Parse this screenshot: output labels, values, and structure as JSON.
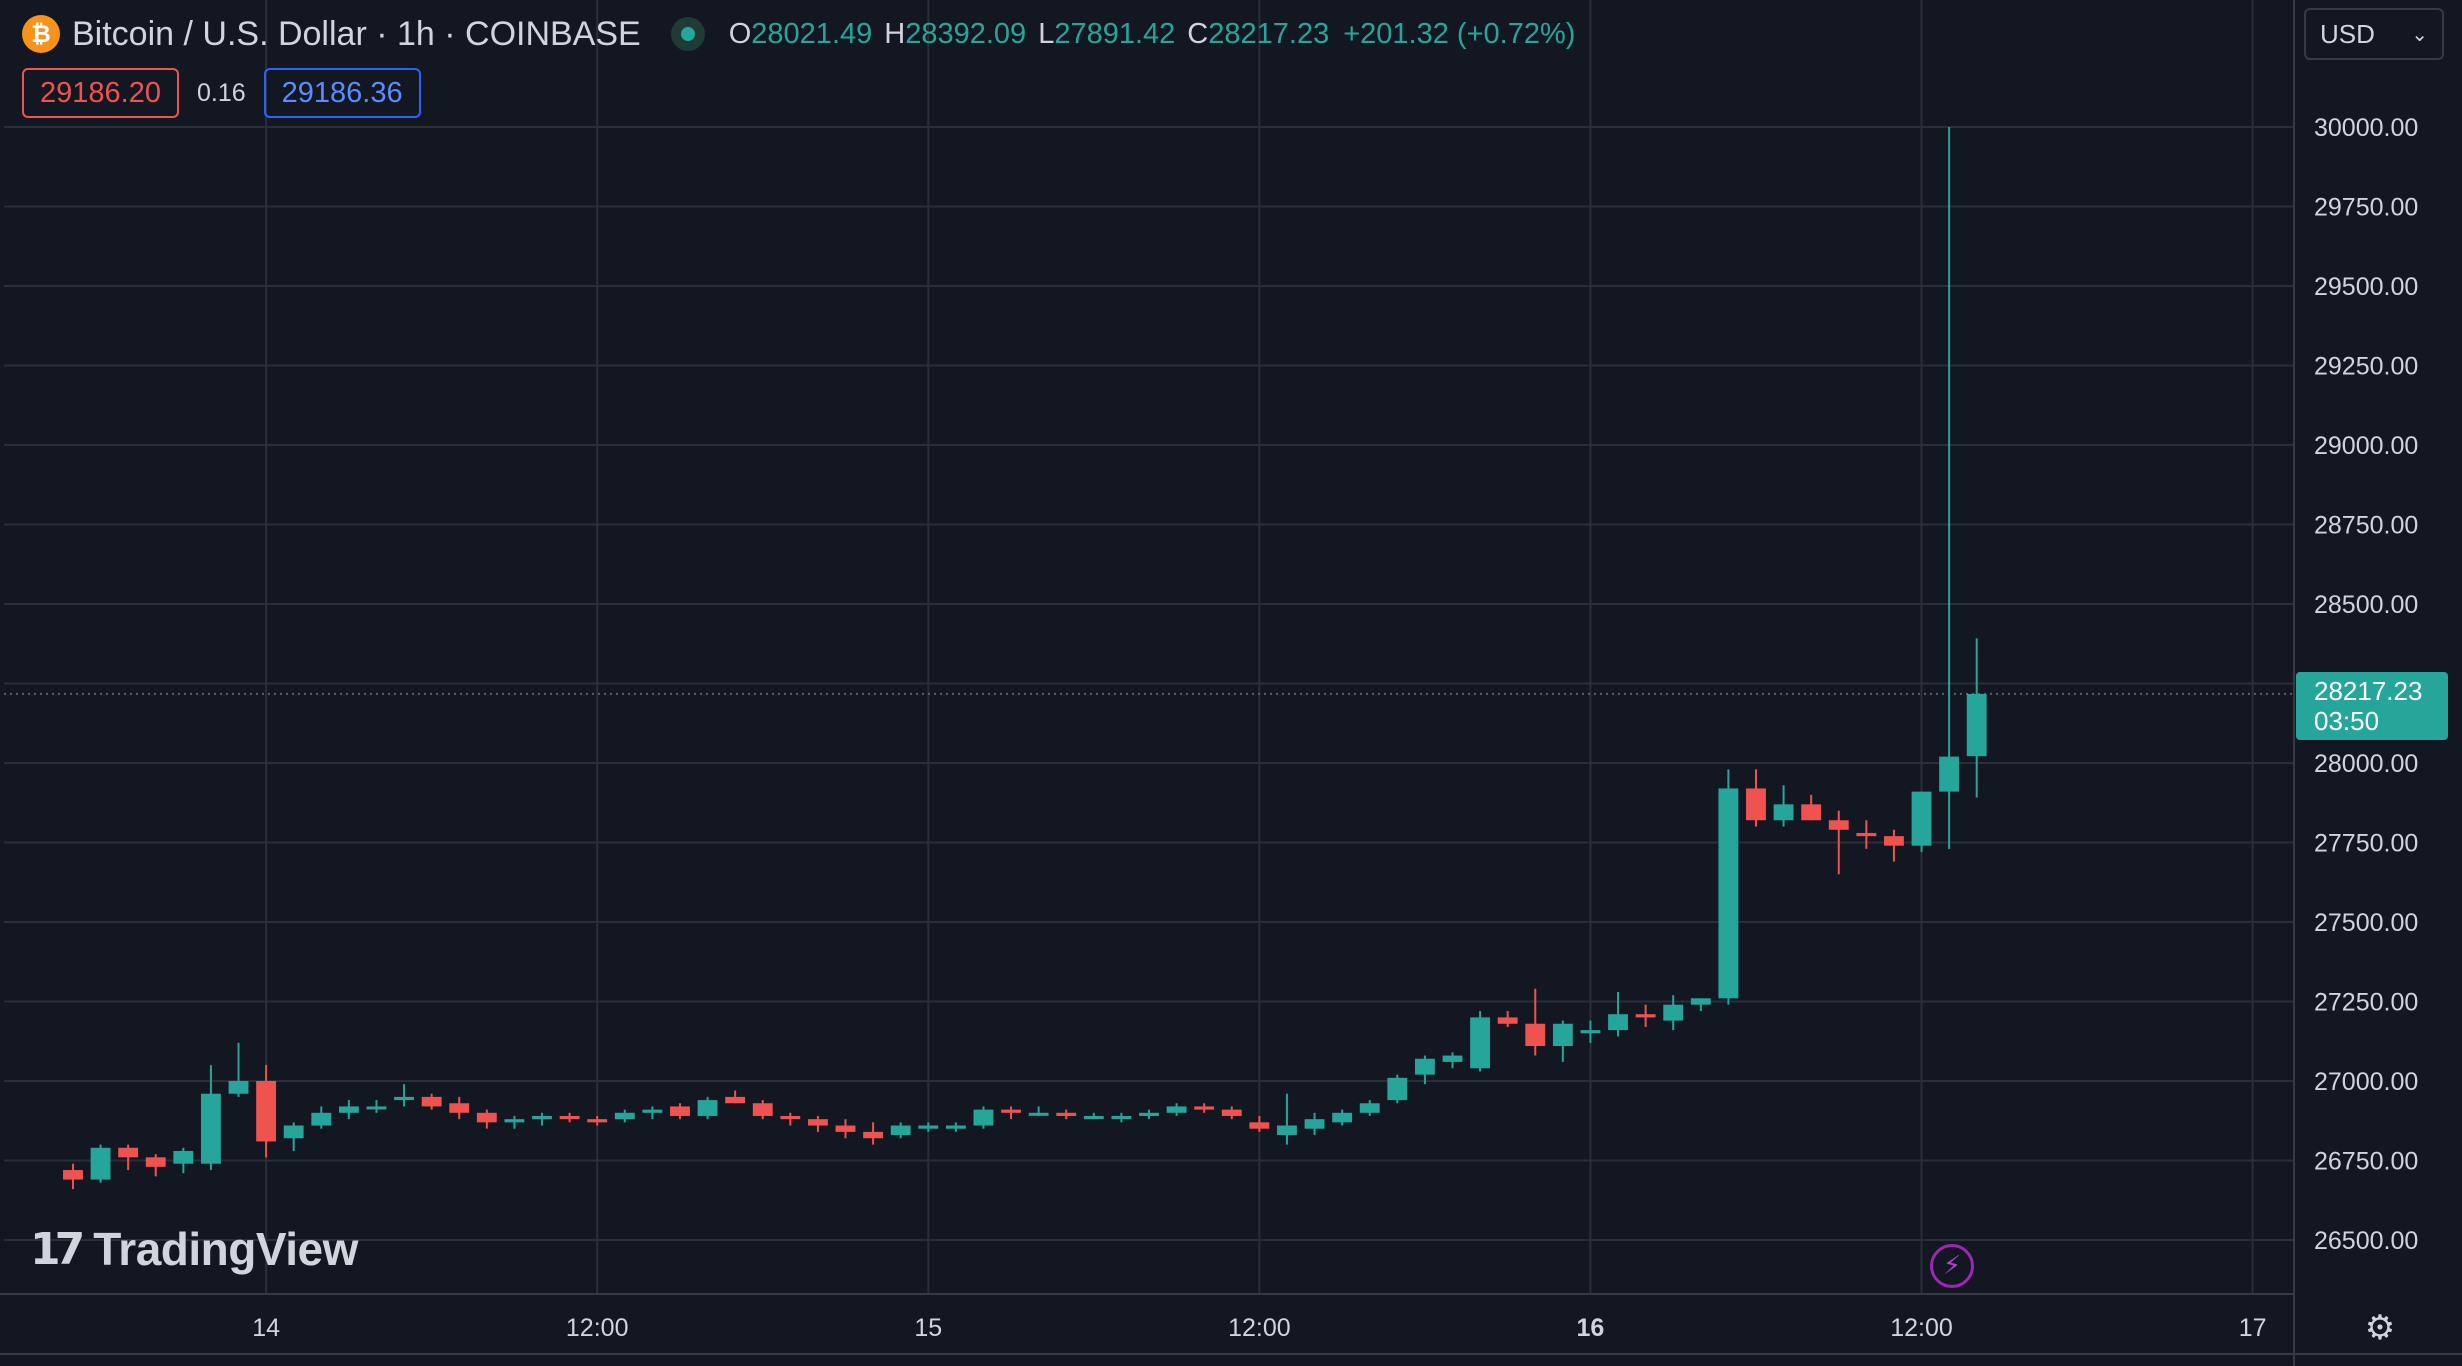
{
  "header": {
    "symbol_icon": "bitcoin-icon",
    "title": "Bitcoin / U.S. Dollar · 1h · COINBASE",
    "ohlc": {
      "o_label": "O",
      "o_value": "28021.49",
      "h_label": "H",
      "h_value": "28392.09",
      "l_label": "L",
      "l_value": "27891.42",
      "c_label": "C",
      "c_value": "28217.23",
      "change": "+201.32 (+0.72%)"
    }
  },
  "quote": {
    "bid": "29186.20",
    "spread": "0.16",
    "ask": "29186.36"
  },
  "currency_select": {
    "value": "USD",
    "icon": "chevron-down-icon"
  },
  "last_price_tag": {
    "price": "28217.23",
    "countdown": "03:50"
  },
  "branding": {
    "logo_text": "TradingView",
    "logo_mark": "17"
  },
  "icons": {
    "bolt": "lightning-icon",
    "settings": "gear-icon"
  },
  "colors": {
    "background": "#131722",
    "grid": "#2a2e39",
    "up": "#26a69a",
    "down": "#ef5350",
    "text": "#d1d4dc",
    "bid": "#ef5350",
    "ask": "#2962ff"
  },
  "chart_data": {
    "type": "candlestick",
    "interval": "1h",
    "ylim": [
      26300,
      30200
    ],
    "y_ticks": [
      "30000.00",
      "29750.00",
      "29500.00",
      "29250.00",
      "29000.00",
      "28750.00",
      "28500.00",
      "28250.00",
      "28000.00",
      "27750.00",
      "27500.00",
      "27250.00",
      "27000.00",
      "26750.00",
      "26500.00"
    ],
    "x_ticks": [
      {
        "label": "14",
        "hour": 7,
        "bold": false
      },
      {
        "label": "12:00",
        "hour": 19,
        "bold": false
      },
      {
        "label": "15",
        "hour": 31,
        "bold": false
      },
      {
        "label": "12:00",
        "hour": 43,
        "bold": false
      },
      {
        "label": "16",
        "hour": 55,
        "bold": true
      },
      {
        "label": "12:00",
        "hour": 67,
        "bold": false
      },
      {
        "label": "17",
        "hour": 79,
        "bold": false
      }
    ],
    "x_range_hours": [
      -2.5,
      80.5
    ],
    "last_price": 28217.23,
    "ohlc": [
      [
        26720,
        26740,
        26660,
        26690
      ],
      [
        26690,
        26800,
        26680,
        26790
      ],
      [
        26790,
        26800,
        26720,
        26760
      ],
      [
        26760,
        26770,
        26700,
        26730
      ],
      [
        26740,
        26790,
        26710,
        26780
      ],
      [
        26740,
        27050,
        26720,
        26960
      ],
      [
        26960,
        27120,
        26950,
        27000
      ],
      [
        27000,
        27050,
        26760,
        26810
      ],
      [
        26820,
        26870,
        26780,
        26860
      ],
      [
        26860,
        26920,
        26850,
        26900
      ],
      [
        26900,
        26940,
        26880,
        26920
      ],
      [
        26920,
        26940,
        26900,
        26920
      ],
      [
        26940,
        26990,
        26920,
        26950
      ],
      [
        26950,
        26960,
        26910,
        26920
      ],
      [
        26930,
        26950,
        26880,
        26900
      ],
      [
        26900,
        26910,
        26850,
        26870
      ],
      [
        26870,
        26890,
        26850,
        26880
      ],
      [
        26880,
        26900,
        26860,
        26890
      ],
      [
        26890,
        26900,
        26870,
        26880
      ],
      [
        26880,
        26890,
        26860,
        26870
      ],
      [
        26880,
        26910,
        26870,
        26900
      ],
      [
        26900,
        26920,
        26880,
        26910
      ],
      [
        26920,
        26930,
        26880,
        26890
      ],
      [
        26890,
        26950,
        26880,
        26940
      ],
      [
        26950,
        26970,
        26930,
        26930
      ],
      [
        26930,
        26940,
        26880,
        26890
      ],
      [
        26890,
        26900,
        26860,
        26880
      ],
      [
        26880,
        26890,
        26840,
        26860
      ],
      [
        26860,
        26880,
        26820,
        26840
      ],
      [
        26840,
        26870,
        26800,
        26820
      ],
      [
        26830,
        26870,
        26820,
        26860
      ],
      [
        26850,
        26870,
        26840,
        26860
      ],
      [
        26850,
        26870,
        26840,
        26860
      ],
      [
        26860,
        26920,
        26850,
        26910
      ],
      [
        26910,
        26920,
        26880,
        26900
      ],
      [
        26900,
        26920,
        26890,
        26900
      ],
      [
        26900,
        26910,
        26880,
        26890
      ],
      [
        26890,
        26900,
        26880,
        26890
      ],
      [
        26890,
        26900,
        26870,
        26890
      ],
      [
        26890,
        26910,
        26880,
        26900
      ],
      [
        26900,
        26930,
        26890,
        26920
      ],
      [
        26920,
        26930,
        26900,
        26910
      ],
      [
        26910,
        26920,
        26880,
        26890
      ],
      [
        26870,
        26890,
        26840,
        26850
      ],
      [
        26830,
        26960,
        26800,
        26860
      ],
      [
        26850,
        26900,
        26830,
        26880
      ],
      [
        26870,
        26910,
        26860,
        26900
      ],
      [
        26900,
        26940,
        26890,
        26930
      ],
      [
        26940,
        27020,
        26930,
        27010
      ],
      [
        27020,
        27080,
        26990,
        27070
      ],
      [
        27060,
        27090,
        27040,
        27080
      ],
      [
        27040,
        27220,
        27030,
        27200
      ],
      [
        27200,
        27220,
        27170,
        27180
      ],
      [
        27180,
        27290,
        27080,
        27110
      ],
      [
        27110,
        27190,
        27060,
        27180
      ],
      [
        27150,
        27190,
        27120,
        27160
      ],
      [
        27160,
        27280,
        27140,
        27210
      ],
      [
        27210,
        27240,
        27170,
        27200
      ],
      [
        27190,
        27270,
        27160,
        27240
      ],
      [
        27240,
        27260,
        27220,
        27260
      ],
      [
        27260,
        27980,
        27240,
        27920
      ],
      [
        27920,
        27980,
        27800,
        27820
      ],
      [
        27820,
        27930,
        27800,
        27870
      ],
      [
        27870,
        27900,
        27820,
        27820
      ],
      [
        27820,
        27850,
        27650,
        27790
      ],
      [
        27780,
        27820,
        27730,
        27770
      ],
      [
        27770,
        27790,
        27690,
        27740
      ],
      [
        27740,
        27910,
        27720,
        27910
      ],
      [
        27910,
        30000,
        27730,
        28020
      ],
      [
        28021.49,
        28392.09,
        27891.42,
        28217.23
      ]
    ]
  }
}
